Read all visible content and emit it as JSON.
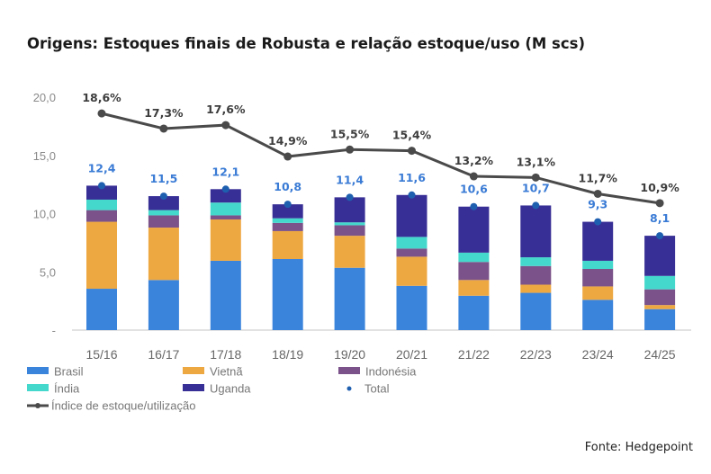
{
  "chart_data": {
    "type": "bar",
    "stacked": true,
    "title": "Origens: Estoques finais de Robusta e relação estoque/uso (M scs)",
    "categories": [
      "15/16",
      "16/17",
      "17/18",
      "18/19",
      "19/20",
      "20/21",
      "21/22",
      "22/23",
      "23/24",
      "24/25"
    ],
    "ylim": [
      0,
      20
    ],
    "yticks": [
      "-",
      "5,0",
      "10,0",
      "15,0",
      "20,0"
    ],
    "grid": false,
    "legend_position": "bottom",
    "series": [
      {
        "name": "Brasil",
        "color": "#3a84dc",
        "values": [
          3.55,
          4.3,
          5.95,
          6.1,
          5.35,
          3.8,
          2.95,
          3.2,
          2.6,
          1.8
        ]
      },
      {
        "name": "Vietnã",
        "color": "#eea842",
        "values": [
          5.75,
          4.5,
          3.55,
          2.4,
          2.75,
          2.5,
          1.35,
          0.7,
          1.15,
          0.35
        ]
      },
      {
        "name": "Indonésia",
        "color": "#7b5289",
        "values": [
          1.0,
          1.05,
          0.35,
          0.7,
          0.9,
          0.7,
          1.55,
          1.6,
          1.5,
          1.35
        ]
      },
      {
        "name": "Índia",
        "color": "#44d8cc",
        "values": [
          0.9,
          0.45,
          1.1,
          0.4,
          0.25,
          1.0,
          0.8,
          0.75,
          0.7,
          1.15
        ]
      },
      {
        "name": "Uganda",
        "color": "#382f96",
        "values": [
          1.2,
          1.2,
          1.15,
          1.2,
          2.15,
          3.6,
          3.95,
          4.45,
          3.35,
          3.45
        ]
      }
    ],
    "total": {
      "name": "Total",
      "color": "#1f5fb0",
      "values": [
        12.4,
        11.5,
        12.1,
        10.8,
        11.4,
        11.6,
        10.6,
        10.7,
        9.3,
        8.1
      ],
      "labels": [
        "12,4",
        "11,5",
        "12,1",
        "10,8",
        "11,4",
        "11,6",
        "10,6",
        "10,7",
        "9,3",
        "8,1"
      ]
    },
    "ratio": {
      "name": "Índice de estoque/utilização",
      "color": "#4a4a4a",
      "values": [
        18.6,
        17.3,
        17.6,
        14.9,
        15.5,
        15.4,
        13.2,
        13.1,
        11.7,
        10.9
      ],
      "labels": [
        "18,6%",
        "17,3%",
        "17,6%",
        "14,9%",
        "15,5%",
        "15,4%",
        "13,2%",
        "13,1%",
        "11,7%",
        "10,9%"
      ]
    }
  },
  "source": "Fonte: Hedgepoint"
}
